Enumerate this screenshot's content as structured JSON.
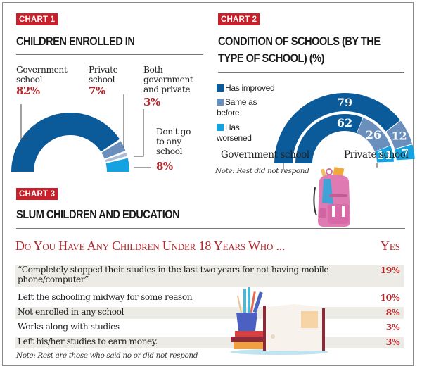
{
  "chart1": {
    "tag": "CHART 1",
    "title": "CHILDREN ENROLLED IN",
    "labels": [
      {
        "line1": "Government",
        "line2": "school",
        "line3": "",
        "line4": "",
        "value": "82%"
      },
      {
        "line1": "Private",
        "line2": "school",
        "line3": "",
        "line4": "",
        "value": "7%"
      },
      {
        "line1": "Both",
        "line2": "government",
        "line3": "and private",
        "line4": "",
        "value": "3%"
      },
      {
        "line1": "Don't go",
        "line2": "to any",
        "line3": "school",
        "line4": "",
        "value": "8%"
      }
    ]
  },
  "chart2": {
    "tag": "CHART 2",
    "title_line1": "CONDITION OF SCHOOLS (BY THE",
    "title_line2": "TYPE OF SCHOOL) (%)",
    "legend": [
      {
        "label_line1": "Has improved",
        "label_line2": ""
      },
      {
        "label_line1": "Same as",
        "label_line2": "before"
      },
      {
        "label_line1": "Has",
        "label_line2": "worsened"
      }
    ],
    "ring_labels": {
      "outer": "Government school",
      "inner": "Private school"
    },
    "note": "Note: Rest did not respond"
  },
  "chart3": {
    "tag": "CHART 3",
    "title": "SLUM CHILDREN AND EDUCATION",
    "question": "Do You Have Any Children Under 18 Years Who ...",
    "yes_header": "Yes",
    "rows": [
      {
        "line1": "“Completely stopped their studies in the last two years  for not having mobile",
        "line2": "phone/computer”",
        "value": "19%"
      },
      {
        "line1": "Left the schooling midway for some reason",
        "line2": "",
        "value": "10%"
      },
      {
        "line1": "Not enrolled in any school",
        "line2": "",
        "value": "8%"
      },
      {
        "line1": "Works along with studies",
        "line2": "",
        "value": "3%"
      },
      {
        "line1": "Left his/her studies to earn money.",
        "line2": "",
        "value": "3%"
      }
    ],
    "note": "Note: Rest are those who said no or did not respond"
  },
  "colors": {
    "accent_red": "#c8202a",
    "value_red": "#b3262b",
    "dark_blue": "#0b5a99",
    "mid_blue": "#6b8fbd",
    "light_gray_blue": "#a9bcd6",
    "bright_blue": "#14a3e0",
    "row_shade": "#ecebe5"
  },
  "chart_data": [
    {
      "type": "pie",
      "subtype": "half-donut",
      "title": "CHILDREN ENROLLED IN",
      "categories": [
        "Government school",
        "Private school",
        "Both government and private",
        "Don't go to any school"
      ],
      "values": [
        82,
        7,
        3,
        8
      ],
      "unit": "%",
      "colors": [
        "#0b5a99",
        "#6b8fbd",
        "#a9bcd6",
        "#14a3e0"
      ]
    },
    {
      "type": "pie",
      "subtype": "concentric half-donut",
      "title": "CONDITION OF SCHOOLS (BY THE TYPE OF SCHOOL) (%)",
      "categories": [
        "Has improved",
        "Same as before",
        "Has worsened"
      ],
      "series": [
        {
          "name": "Government school",
          "ring": "outer",
          "values": [
            79,
            12,
            7
          ]
        },
        {
          "name": "Private school",
          "ring": "inner",
          "values": [
            62,
            26,
            11
          ]
        }
      ],
      "legend": "left",
      "note": "Note: Rest did not respond",
      "colors": [
        "#0b5a99",
        "#6b8fbd",
        "#14a3e0"
      ]
    },
    {
      "type": "table",
      "title": "SLUM CHILDREN AND EDUCATION",
      "columns": [
        "Do You Have Any Children Under 18 Years Who ...",
        "Yes"
      ],
      "rows": [
        [
          "“Completely stopped their studies in the last two years for not having mobile phone/computer”",
          "19%"
        ],
        [
          "Left the schooling midway for some reason",
          "10%"
        ],
        [
          "Not enrolled in any school",
          "8%"
        ],
        [
          "Works along with studies",
          "3%"
        ],
        [
          "Left his/her studies to earn money.",
          "3%"
        ]
      ],
      "note": "Note: Rest are those who said no or did not respond"
    }
  ]
}
